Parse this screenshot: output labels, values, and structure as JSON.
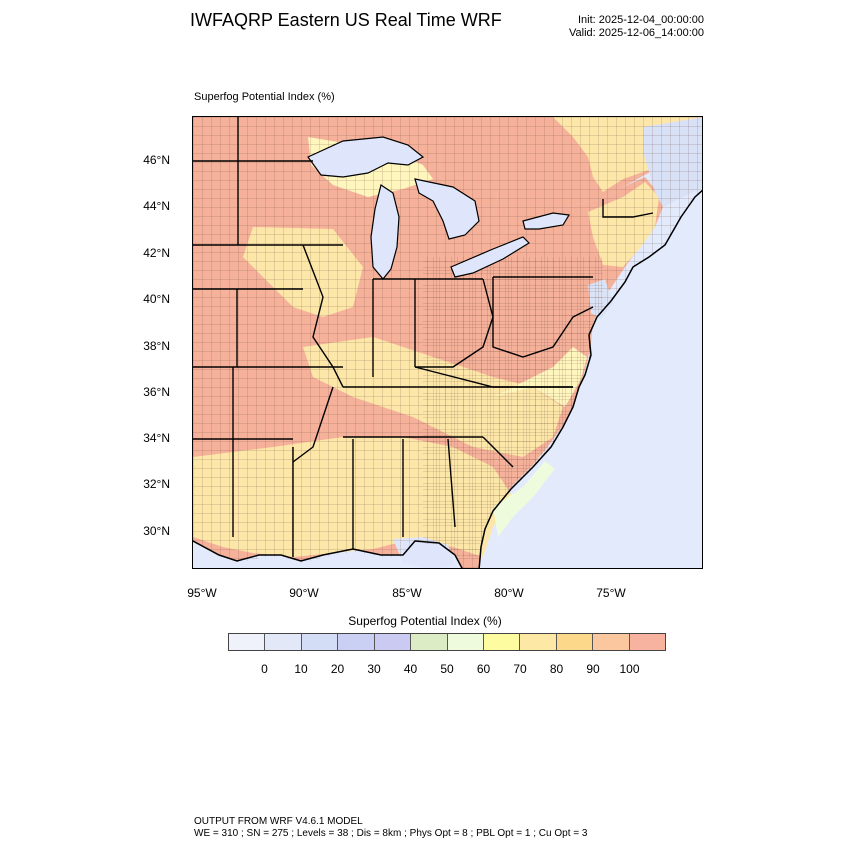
{
  "header": {
    "title": "IWFAQRP Eastern US Real Time WRF",
    "init": "Init: 2025-12-04_00:00:00",
    "valid": "Valid: 2025-12-06_14:00:00"
  },
  "map": {
    "field_label": "Superfog Potential Index   (%)",
    "lat_labels": [
      "46°N",
      "44°N",
      "42°N",
      "40°N",
      "38°N",
      "36°N",
      "34°N",
      "32°N",
      "30°N"
    ],
    "lon_labels": [
      "95°W",
      "90°W",
      "85°W",
      "80°W",
      "75°W"
    ],
    "colors": {
      "ocean": "#e2eafc",
      "land_high": "#f6b19a",
      "land_mid": "#fde7a8",
      "land_low": "#fff6bd",
      "water": "#dfe6fb",
      "border": "#000000"
    }
  },
  "colorbar": {
    "title": "Superfog Potential Index  (%)",
    "colors": [
      "#eff2fa",
      "#e2e8f8",
      "#d4ddf6",
      "#c9d0f4",
      "#cbcaf2",
      "#dcecc4",
      "#eefbdc",
      "#fefca0",
      "#fee8a6",
      "#fcd98a",
      "#fbc79e",
      "#f8b2a0"
    ],
    "labels": [
      "0",
      "10",
      "20",
      "30",
      "40",
      "50",
      "60",
      "70",
      "80",
      "90",
      "100"
    ]
  },
  "footer": {
    "line1": "OUTPUT FROM WRF V4.6.1 MODEL",
    "line2": "WE = 310 ; SN = 275 ; Levels = 38 ; Dis = 8km ; Phys Opt = 8 ; PBL Opt = 1 ; Cu Opt = 3"
  }
}
